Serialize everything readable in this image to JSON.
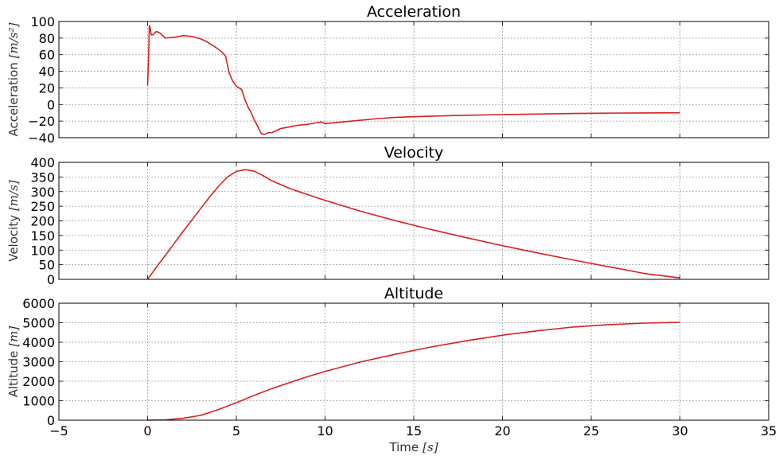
{
  "line_color": "#d62020",
  "chart_data": [
    {
      "type": "line",
      "title": "Acceleration",
      "ylabel_text": "Acceleration",
      "ylabel_unit": "[m/s²]",
      "xlabel": "",
      "xlim": [
        -5,
        35
      ],
      "ylim": [
        -40,
        100
      ],
      "xticks": [
        -5,
        0,
        5,
        10,
        15,
        20,
        25,
        30,
        35
      ],
      "yticks": [
        -40,
        -20,
        0,
        20,
        40,
        60,
        80,
        100
      ],
      "show_xticklabels": false,
      "grid": true,
      "series": [
        {
          "x": [
            0,
            0.05,
            0.1,
            0.15,
            0.2,
            0.3,
            0.5,
            0.7,
            1.0,
            1.5,
            2.0,
            2.5,
            3.0,
            3.3,
            3.6,
            3.9,
            4.2,
            4.4,
            4.5,
            4.6,
            4.8,
            5.0,
            5.3,
            5.5,
            5.7,
            5.8,
            6.0,
            6.2,
            6.4,
            6.6,
            6.8,
            7.0,
            7.5,
            8.0,
            8.5,
            9.0,
            9.5,
            9.8,
            10.0,
            11,
            12,
            13,
            14,
            15,
            16,
            18,
            20,
            22,
            24,
            26,
            28,
            30
          ],
          "y": [
            23,
            55,
            95,
            92,
            84,
            84,
            88,
            86,
            80,
            81,
            83,
            82,
            79,
            76,
            72,
            68,
            63,
            58,
            48,
            38,
            28,
            22,
            18,
            5,
            -5,
            -8,
            -18,
            -26,
            -35,
            -36,
            -34,
            -34,
            -29,
            -27,
            -25,
            -24,
            -22,
            -21,
            -23,
            -21,
            -19,
            -17,
            -15.5,
            -14.8,
            -14,
            -13,
            -12.2,
            -11.5,
            -10.8,
            -10.4,
            -10.2,
            -10
          ]
        }
      ]
    },
    {
      "type": "line",
      "title": "Velocity",
      "ylabel_text": "Velocity",
      "ylabel_unit": "[m/s]",
      "xlabel": "",
      "xlim": [
        -5,
        35
      ],
      "ylim": [
        0,
        400
      ],
      "xticks": [
        -5,
        0,
        5,
        10,
        15,
        20,
        25,
        30,
        35
      ],
      "yticks": [
        0,
        50,
        100,
        150,
        200,
        250,
        300,
        350,
        400
      ],
      "show_xticklabels": false,
      "grid": true,
      "series": [
        {
          "x": [
            0,
            0.5,
            1.0,
            1.5,
            2.0,
            2.5,
            3.0,
            3.5,
            4.0,
            4.5,
            5.0,
            5.5,
            6.0,
            6.5,
            7.0,
            8.0,
            9.0,
            10.0,
            12.0,
            14.0,
            16.0,
            18.0,
            20.0,
            22.0,
            24.0,
            26.0,
            28.0,
            30.0
          ],
          "y": [
            0,
            42,
            82,
            123,
            164,
            203,
            243,
            282,
            318,
            350,
            369,
            375,
            370,
            355,
            337,
            311,
            290,
            270,
            233,
            200,
            170,
            142,
            115,
            90,
            66,
            43,
            20,
            5
          ]
        }
      ]
    },
    {
      "type": "line",
      "title": "Altitude",
      "ylabel_text": "Altitude",
      "ylabel_unit": "[m]",
      "xlabel_text": "Time",
      "xlabel_unit": "[s]",
      "xlim": [
        -5,
        35
      ],
      "ylim": [
        0,
        6000
      ],
      "xticks": [
        -5,
        0,
        5,
        10,
        15,
        20,
        25,
        30,
        35
      ],
      "yticks": [
        0,
        1000,
        2000,
        3000,
        4000,
        5000,
        6000
      ],
      "show_xticklabels": true,
      "grid": true,
      "series": [
        {
          "x": [
            0,
            1,
            2,
            3,
            4,
            5,
            6,
            7,
            8,
            9,
            10,
            12,
            14,
            16,
            18,
            20,
            22,
            24,
            26,
            28,
            30
          ],
          "y": [
            0,
            20,
            100,
            250,
            550,
            900,
            1270,
            1620,
            1930,
            2230,
            2500,
            2990,
            3390,
            3760,
            4080,
            4360,
            4590,
            4780,
            4900,
            4980,
            5020
          ]
        }
      ]
    }
  ]
}
